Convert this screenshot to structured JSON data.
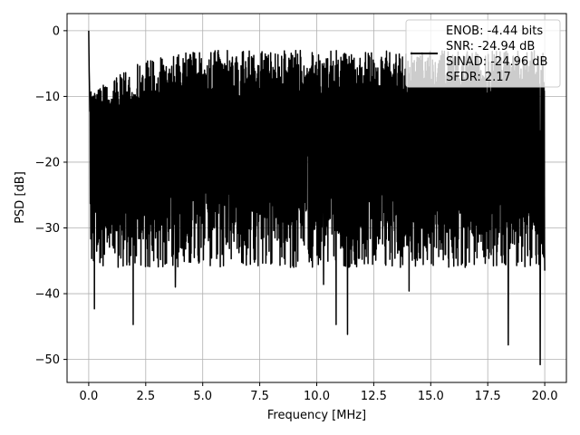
{
  "chart_data": {
    "type": "line",
    "title": "",
    "xlabel": "Frequency [MHz]",
    "ylabel": "PSD [dB]",
    "xlim": [
      -0.95,
      20.95
    ],
    "ylim": [
      -53.5,
      2.6
    ],
    "xticks": [
      0.0,
      2.5,
      5.0,
      7.5,
      10.0,
      12.5,
      15.0,
      17.5,
      20.0
    ],
    "xtick_labels": [
      "0.0",
      "2.5",
      "5.0",
      "7.5",
      "10.0",
      "12.5",
      "15.0",
      "17.5",
      "20.0"
    ],
    "yticks": [
      0,
      -10,
      -20,
      -30,
      -40,
      -50
    ],
    "ytick_labels": [
      "0",
      "−10",
      "−20",
      "−30",
      "−40",
      "−50"
    ],
    "grid": true,
    "legend_placement": "top-right",
    "legend_lines": [
      "ENOB: -4.44 bits",
      "SNR: -24.94 dB",
      "SINAD: -24.96 dB",
      "SFDR: 2.17"
    ],
    "line_color": "#000000",
    "series": [
      {
        "x_start": 0.0,
        "x_end": 20.0,
        "peak": {
          "x": 0.0,
          "y": 0.0
        },
        "noise_floor_median": -18.5,
        "noise_top_range": [
          -10,
          -3
        ],
        "noise_bottom_range": [
          -36,
          -24
        ],
        "deep_dips": [
          {
            "x": 0.25,
            "y": -42.3
          },
          {
            "x": 1.95,
            "y": -44.7
          },
          {
            "x": 3.8,
            "y": -39.0
          },
          {
            "x": 10.3,
            "y": -38.6
          },
          {
            "x": 10.85,
            "y": -44.7
          },
          {
            "x": 11.35,
            "y": -46.2
          },
          {
            "x": 14.05,
            "y": -39.6
          },
          {
            "x": 18.4,
            "y": -47.8
          },
          {
            "x": 19.8,
            "y": -50.8
          }
        ]
      }
    ]
  }
}
